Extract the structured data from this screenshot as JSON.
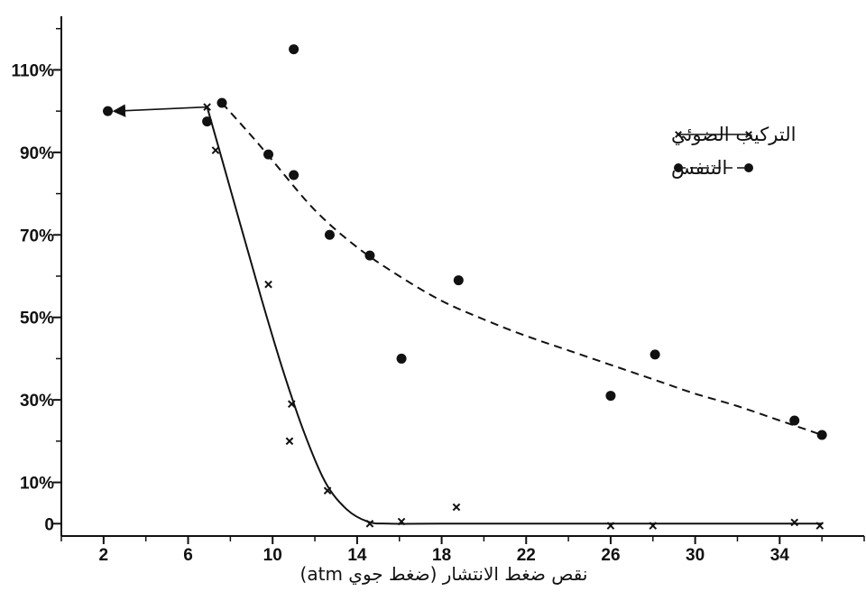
{
  "chart_data": {
    "type": "scatter",
    "title": "",
    "xlabel": "نقص ضغط الانتشار (ضغط جوي atm)",
    "ylabel": "",
    "xlim": [
      0,
      38
    ],
    "ylim": [
      -3,
      123
    ],
    "x_ticks": [
      2,
      6,
      10,
      14,
      18,
      22,
      26,
      30,
      34
    ],
    "y_ticks": [
      {
        "value": 0,
        "label": "0"
      },
      {
        "value": 10,
        "label": "10%"
      },
      {
        "value": 30,
        "label": "30%"
      },
      {
        "value": 50,
        "label": "50%"
      },
      {
        "value": 70,
        "label": "70%"
      },
      {
        "value": 90,
        "label": "90%"
      },
      {
        "value": 110,
        "label": "110%"
      }
    ],
    "grid": false,
    "legend_position": "top-right",
    "series": [
      {
        "name": "التركيب الضوئي",
        "marker": "x",
        "line_style": "solid",
        "color": "#111111",
        "points": [
          {
            "x": 6.9,
            "y": 101
          },
          {
            "x": 7.3,
            "y": 90.5
          },
          {
            "x": 9.8,
            "y": 58
          },
          {
            "x": 10.9,
            "y": 29
          },
          {
            "x": 10.8,
            "y": 20
          },
          {
            "x": 12.6,
            "y": 8
          },
          {
            "x": 14.6,
            "y": 0
          },
          {
            "x": 16.1,
            "y": 0.5
          },
          {
            "x": 18.7,
            "y": 4
          },
          {
            "x": 26.0,
            "y": -0.5
          },
          {
            "x": 28.0,
            "y": -0.5
          },
          {
            "x": 34.7,
            "y": 0.3
          },
          {
            "x": 35.9,
            "y": -0.5
          }
        ],
        "fit_curve": [
          {
            "x": 6.9,
            "y": 101
          },
          {
            "x": 7.4,
            "y": 92
          },
          {
            "x": 8.5,
            "y": 72
          },
          {
            "x": 9.5,
            "y": 54
          },
          {
            "x": 10.5,
            "y": 37
          },
          {
            "x": 11.5,
            "y": 22
          },
          {
            "x": 12.5,
            "y": 10
          },
          {
            "x": 13.5,
            "y": 3.5
          },
          {
            "x": 14.5,
            "y": 0.5
          },
          {
            "x": 15.5,
            "y": 0
          },
          {
            "x": 18,
            "y": 0
          },
          {
            "x": 22,
            "y": 0
          },
          {
            "x": 26,
            "y": 0
          },
          {
            "x": 30,
            "y": 0
          },
          {
            "x": 36,
            "y": 0
          }
        ],
        "extension": {
          "from": {
            "x": 6.9,
            "y": 101
          },
          "to": {
            "x": 2.2,
            "y": 100
          },
          "arrow": true
        }
      },
      {
        "name": "التنفس",
        "marker": "circle",
        "line_style": "dashed",
        "color": "#111111",
        "points": [
          {
            "x": 2.2,
            "y": 100
          },
          {
            "x": 6.9,
            "y": 97.5
          },
          {
            "x": 7.6,
            "y": 102
          },
          {
            "x": 9.8,
            "y": 89.5
          },
          {
            "x": 11.0,
            "y": 115
          },
          {
            "x": 11.0,
            "y": 84.5
          },
          {
            "x": 12.7,
            "y": 70
          },
          {
            "x": 14.6,
            "y": 65
          },
          {
            "x": 16.1,
            "y": 40
          },
          {
            "x": 18.8,
            "y": 59
          },
          {
            "x": 26.0,
            "y": 31
          },
          {
            "x": 28.1,
            "y": 41
          },
          {
            "x": 34.7,
            "y": 25
          },
          {
            "x": 36.0,
            "y": 21.5
          }
        ],
        "fit_curve": [
          {
            "x": 7.6,
            "y": 102
          },
          {
            "x": 9,
            "y": 94
          },
          {
            "x": 10,
            "y": 88
          },
          {
            "x": 12,
            "y": 76
          },
          {
            "x": 14,
            "y": 67
          },
          {
            "x": 16,
            "y": 60
          },
          {
            "x": 18,
            "y": 54
          },
          {
            "x": 20,
            "y": 49.5
          },
          {
            "x": 22,
            "y": 45.5
          },
          {
            "x": 24,
            "y": 42
          },
          {
            "x": 26,
            "y": 38.5
          },
          {
            "x": 28,
            "y": 35
          },
          {
            "x": 30,
            "y": 31.5
          },
          {
            "x": 32,
            "y": 28.5
          },
          {
            "x": 34,
            "y": 25
          },
          {
            "x": 36,
            "y": 21.5
          }
        ]
      }
    ]
  }
}
